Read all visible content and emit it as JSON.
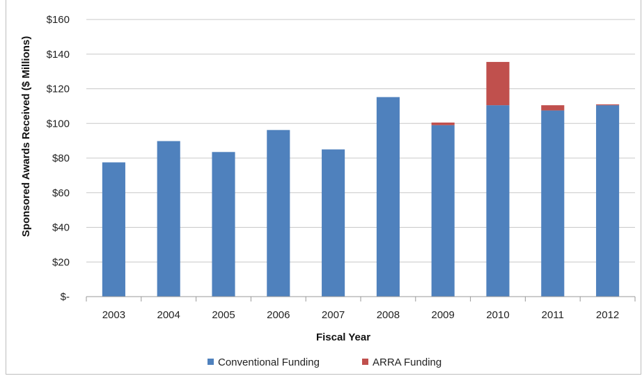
{
  "chart_data": {
    "type": "bar",
    "stacked": true,
    "title": "",
    "xlabel": "Fiscal Year",
    "ylabel": "Sponsored Awards Received ($ Millions)",
    "ylim": [
      0,
      160
    ],
    "yticks": [
      0,
      20,
      40,
      60,
      80,
      100,
      120,
      140,
      160
    ],
    "ytick_labels": [
      "$-",
      "$20",
      "$40",
      "$60",
      "$80",
      "$100",
      "$120",
      "$140",
      "$160"
    ],
    "grid": true,
    "legend_position": "bottom",
    "categories": [
      "2003",
      "2004",
      "2005",
      "2006",
      "2007",
      "2008",
      "2009",
      "2010",
      "2011",
      "2012"
    ],
    "series": [
      {
        "name": "Conventional Funding",
        "color": "#4f81bd",
        "values": [
          77.5,
          89.8,
          83.5,
          96.2,
          85.0,
          115.2,
          99.0,
          110.5,
          107.5,
          110.5
        ]
      },
      {
        "name": "ARRA Funding",
        "color": "#c0504d",
        "values": [
          0,
          0,
          0,
          0,
          0,
          0,
          1.5,
          25.0,
          3.0,
          0.5
        ]
      }
    ]
  }
}
